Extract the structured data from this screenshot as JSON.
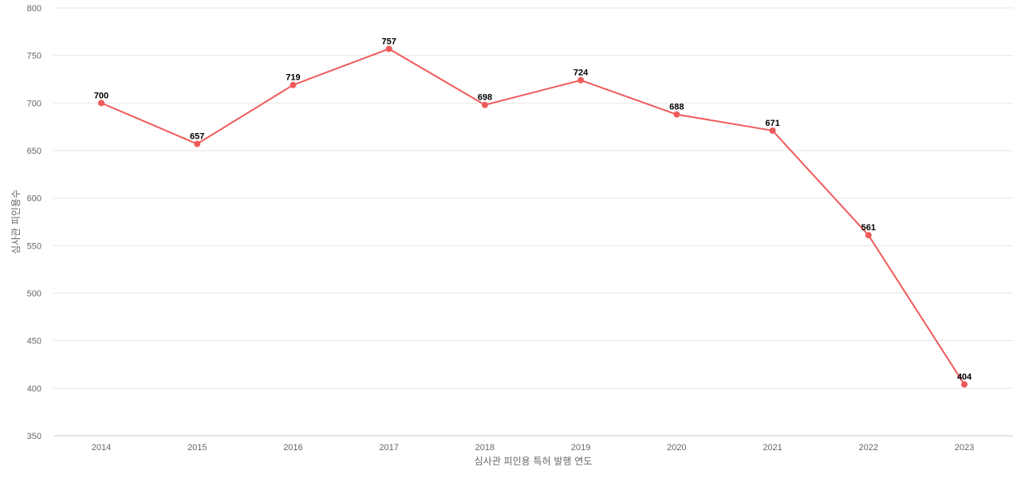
{
  "chart_data": {
    "type": "line",
    "title": "",
    "xlabel": "심사관 피인용 특허 발행 연도",
    "ylabel": "심사관 피인용수",
    "x": [
      "2014",
      "2015",
      "2016",
      "2017",
      "2018",
      "2019",
      "2020",
      "2021",
      "2022",
      "2023"
    ],
    "series": [
      {
        "name": "",
        "values": [
          700,
          657,
          719,
          757,
          698,
          724,
          688,
          671,
          561,
          404
        ],
        "color": "#ef5a5a"
      }
    ],
    "ylim": [
      350,
      800
    ],
    "yticks": [
      350,
      400,
      450,
      500,
      550,
      600,
      650,
      700,
      750,
      800
    ],
    "grid": "horizontal",
    "legend": "none",
    "data_labels": true
  }
}
